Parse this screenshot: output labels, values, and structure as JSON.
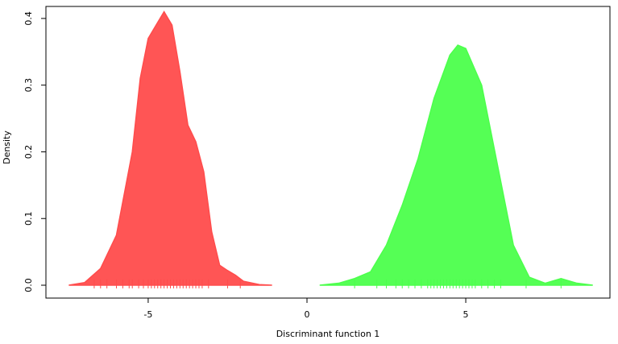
{
  "chart_data": {
    "type": "area",
    "xlabel": "Discriminant function 1",
    "ylabel": "Density",
    "xlim": [
      -8.22,
      9.54
    ],
    "ylim": [
      -0.0193,
      0.418
    ],
    "xticks": [
      -5,
      0,
      5
    ],
    "yticks": [
      {
        "value": 0,
        "label": "0.0"
      },
      0.1,
      0.2,
      0.3,
      0.4
    ],
    "grid": false,
    "series": [
      {
        "color": "#ff4c4c",
        "x": [
          -7.5,
          -7.0,
          -6.5,
          -6.0,
          -5.5,
          -5.25,
          -5.0,
          -4.75,
          -4.5,
          -4.25,
          -4.0,
          -3.75,
          -3.5,
          -3.25,
          -3.0,
          -2.75,
          -2.5,
          -2.25,
          -2.0,
          -1.5,
          -1.1
        ],
        "values": [
          0.0,
          0.004,
          0.025,
          0.075,
          0.2,
          0.31,
          0.37,
          0.39,
          0.41,
          0.39,
          0.32,
          0.24,
          0.215,
          0.17,
          0.08,
          0.03,
          0.022,
          0.015,
          0.006,
          0.001,
          0.0
        ],
        "rug": [
          -6.7,
          -6.5,
          -6.3,
          -6.0,
          -5.8,
          -5.6,
          -5.5,
          -5.3,
          -5.15,
          -5.0,
          -4.9,
          -4.8,
          -4.7,
          -4.6,
          -4.5,
          -4.4,
          -4.3,
          -4.2,
          -4.1,
          -4.0,
          -3.9,
          -3.8,
          -3.7,
          -3.6,
          -3.5,
          -3.4,
          -3.3,
          -3.1,
          -2.5,
          -2.1
        ]
      },
      {
        "color": "#4cff4c",
        "x": [
          0.4,
          1.0,
          1.5,
          2.0,
          2.5,
          3.0,
          3.5,
          4.0,
          4.5,
          4.75,
          5.0,
          5.5,
          6.0,
          6.5,
          7.0,
          7.5,
          8.0,
          8.5,
          9.0
        ],
        "values": [
          0.0,
          0.003,
          0.01,
          0.02,
          0.06,
          0.12,
          0.19,
          0.28,
          0.345,
          0.36,
          0.355,
          0.3,
          0.18,
          0.06,
          0.012,
          0.003,
          0.01,
          0.003,
          0.0
        ],
        "rug": [
          1.5,
          2.2,
          2.5,
          2.8,
          3.0,
          3.2,
          3.4,
          3.6,
          3.8,
          3.9,
          4.0,
          4.1,
          4.2,
          4.3,
          4.4,
          4.5,
          4.6,
          4.7,
          4.8,
          4.9,
          5.0,
          5.1,
          5.2,
          5.3,
          5.5,
          5.7,
          5.9,
          6.1,
          6.9,
          8.0
        ]
      }
    ]
  }
}
